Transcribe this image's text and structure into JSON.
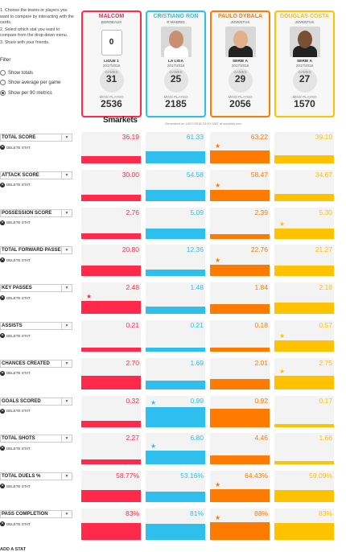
{
  "instructions": [
    "1. Choose the teams or players you want to compare by interacting with the cards.",
    "2. Select which stat you want to compare from the drop-down menu.",
    "3. Share with your friends."
  ],
  "filter": {
    "title": "Filter",
    "options": [
      {
        "label": "Show totals",
        "selected": false
      },
      {
        "label": "Show average per game",
        "selected": false
      },
      {
        "label": "Show per 90 metrics",
        "selected": true
      }
    ]
  },
  "players": [
    {
      "name": "MALCOM",
      "club": "BORDEAUX",
      "league": "LIGUE 1",
      "season": "2017/2018",
      "games_label": "GAMES",
      "games": "31",
      "mins_label": "MINS PLAYED",
      "mins": "2536",
      "color": "#ff2a4b",
      "shirt_number": "0"
    },
    {
      "name": "CRISTIANO RON",
      "club": "R MADRID",
      "league": "LA LIGA",
      "season": "2017/2018",
      "games_label": "GAMES",
      "games": "25",
      "mins_label": "MINS PLAYED",
      "mins": "2185",
      "color": "#2ebfef"
    },
    {
      "name": "PAULO DYBALA",
      "club": "JUVENTUS",
      "league": "SERIE A",
      "season": "2017/2018",
      "games_label": "GAMES",
      "games": "29",
      "mins_label": "MINS PLAYED",
      "mins": "2056",
      "color": "#ff7a00"
    },
    {
      "name": "DOUGLAS COSTA",
      "club": "JUVENTUS",
      "league": "SERIE A",
      "season": "2017/2018",
      "games_label": "GAMES",
      "games": "27",
      "mins_label": "MINS PLAYED",
      "mins": "1570",
      "color": "#ffc200"
    }
  ],
  "branding": {
    "logo": "Smarkets",
    "generated": "Generated on 24/07/2018 03:00 GMT at scoutefy.com"
  },
  "delete_label": "DELETE STAT",
  "dropdown_arrow": "chevron-down-icon",
  "stats": [
    {
      "label": "TOTAL SCORE",
      "values": [
        "36.19",
        "61.33",
        "63.22",
        "39.10"
      ],
      "fill": [
        0.36,
        0.61,
        0.63,
        0.39
      ],
      "star": 2
    },
    {
      "label": "ATTACK SCORE",
      "values": [
        "30.00",
        "54.58",
        "58.47",
        "34.67"
      ],
      "fill": [
        0.3,
        0.55,
        0.58,
        0.35
      ],
      "star": 2
    },
    {
      "label": "POSSESSION SCORE",
      "values": [
        "2.76",
        "5.09",
        "2.39",
        "5.30"
      ],
      "fill": [
        0.28,
        0.51,
        0.24,
        0.53
      ],
      "star": 3
    },
    {
      "label": "TOTAL FORWARD PASSES",
      "values": [
        "20.80",
        "12.36",
        "22.76",
        "21.27"
      ],
      "fill": [
        0.52,
        0.31,
        0.57,
        0.53
      ],
      "star": 2
    },
    {
      "label": "KEY PASSES",
      "values": [
        "2.48",
        "1.48",
        "1.84",
        "2.18"
      ],
      "fill": [
        0.62,
        0.37,
        0.46,
        0.55
      ],
      "star": 0
    },
    {
      "label": "ASSISTS",
      "values": [
        "0.21",
        "0.21",
        "0.18",
        "0.57"
      ],
      "fill": [
        0.21,
        0.21,
        0.18,
        0.57
      ],
      "star": 3
    },
    {
      "label": "CHANCES CREATED",
      "values": [
        "2.70",
        "1.69",
        "2.01",
        "2.75"
      ],
      "fill": [
        0.68,
        0.42,
        0.5,
        0.69
      ],
      "star": 3
    },
    {
      "label": "GOALS SCORED",
      "values": [
        "0.32",
        "0.99",
        "0.92",
        "0.17"
      ],
      "fill": [
        0.32,
        0.99,
        0.92,
        0.17
      ],
      "star": 1
    },
    {
      "label": "TOTAL SHOTS",
      "values": [
        "2.27",
        "6.80",
        "4.46",
        "1.66"
      ],
      "fill": [
        0.23,
        0.68,
        0.45,
        0.17
      ],
      "star": 1
    },
    {
      "label": "TOTAL DUELS %",
      "values": [
        "58.77%",
        "53.16%",
        "64.43%",
        "59.09%"
      ],
      "fill": [
        0.59,
        0.53,
        0.64,
        0.59
      ],
      "star": 2
    },
    {
      "label": "PASS COMPLETION",
      "values": [
        "83%",
        "81%",
        "88%",
        "83%"
      ],
      "fill": [
        0.83,
        0.81,
        0.88,
        0.83
      ],
      "star": 2
    }
  ],
  "add_stat": "ADD A STAT"
}
